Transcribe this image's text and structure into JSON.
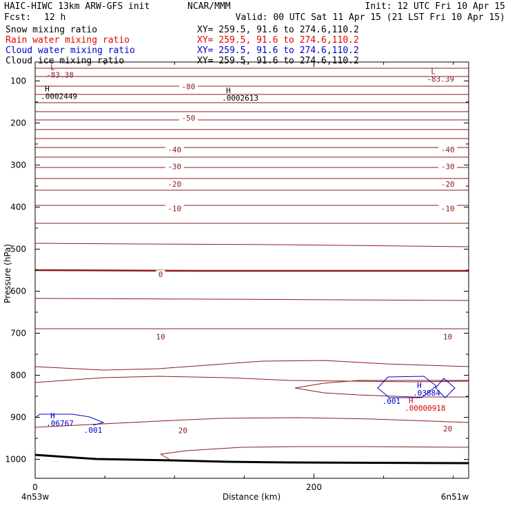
{
  "header": {
    "left_title": "HAIC-HIWC 13km ARW-GFS init",
    "center_title": "NCAR/MMM",
    "init": "Init: 12 UTC Fri 10 Apr 15",
    "fcst_label": "Fcst:",
    "fcst_value": "12 h",
    "valid": "Valid: 00 UTC Sat 11 Apr 15 (21 LST Fri 10 Apr 15)"
  },
  "fields": [
    {
      "name": "Snow mixing ratio",
      "xy": "XY= 259.5, 91.6 to 274.6,110.2",
      "color": "#000000"
    },
    {
      "name": "Rain water mixing ratio",
      "xy": "XY= 259.5, 91.6 to 274.6,110.2",
      "color": "#e00000"
    },
    {
      "name": "Cloud water mixing ratio",
      "xy": "XY= 259.5, 91.6 to 274.6,110.2",
      "color": "#0000cc"
    },
    {
      "name": "Cloud ice mixing ratio",
      "xy": "XY= 259.5, 91.6 to 274.6,110.2",
      "color": "#000000"
    }
  ],
  "chart_data": {
    "type": "contour",
    "title": "",
    "xlabel": "Distance (km)",
    "ylabel": "Pressure (hPa)",
    "xlim": [
      0,
      311
    ],
    "ylim": [
      1045,
      55
    ],
    "x_ticks": [
      0,
      200
    ],
    "y_ticks": [
      100,
      200,
      300,
      400,
      500,
      600,
      700,
      800,
      900,
      1000
    ],
    "endpoint_labels": {
      "left": "4n53w",
      "right": "6n51w"
    },
    "isotherm_color": "#8b1a1a",
    "isotherm_labels": [
      {
        "value": "-80",
        "x": 110,
        "p": 113
      },
      {
        "value": "-50",
        "x": 110,
        "p": 188
      },
      {
        "value": "-40",
        "x": 100,
        "p": 263
      },
      {
        "value": "-40",
        "x": 296,
        "p": 263
      },
      {
        "value": "-30",
        "x": 100,
        "p": 303
      },
      {
        "value": "-30",
        "x": 296,
        "p": 303
      },
      {
        "value": "-20",
        "x": 100,
        "p": 345
      },
      {
        "value": "-20",
        "x": 296,
        "p": 345
      },
      {
        "value": "-10",
        "x": 100,
        "p": 403
      },
      {
        "value": "-10",
        "x": 296,
        "p": 403
      },
      {
        "value": "0",
        "x": 90,
        "p": 560
      },
      {
        "value": "10",
        "x": 90,
        "p": 708
      },
      {
        "value": "10",
        "x": 296,
        "p": 708
      },
      {
        "value": "20",
        "x": 106,
        "p": 931
      },
      {
        "value": "20",
        "x": 296,
        "p": 927
      }
    ],
    "extrema": [
      {
        "type": "L",
        "value": "-83.38",
        "x": 8,
        "p": 74,
        "color": "#8b1a1a"
      },
      {
        "type": "L",
        "value": "-83.39",
        "x": 281,
        "p": 84,
        "color": "#8b1a1a"
      },
      {
        "type": "H",
        "value": ".0002449",
        "x": 4,
        "p": 125,
        "color": "#000000"
      },
      {
        "type": "H",
        "value": ".0002613",
        "x": 134,
        "p": 129,
        "color": "#000000"
      },
      {
        "type": "H",
        "value": ".06767",
        "x": 8,
        "p": 902,
        "color": "#0000cc"
      },
      {
        "type": "H",
        "value": ".03884",
        "x": 271,
        "p": 830,
        "color": "#0000cc"
      },
      {
        "type": "H",
        "value": ".00000918",
        "x": 265,
        "p": 866,
        "color": "#e00000"
      }
    ],
    "cloud_water_labels": [
      {
        "value": ".001",
        "x": 35,
        "p": 937
      },
      {
        "value": ".001",
        "x": 249,
        "p": 868
      }
    ]
  }
}
